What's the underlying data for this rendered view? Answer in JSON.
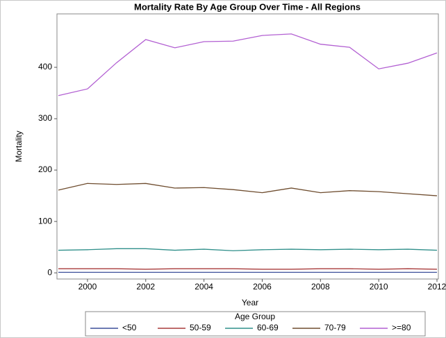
{
  "chart_data": {
    "type": "line",
    "title": "Mortality Rate By Age Group Over Time - All Regions",
    "x_label": "Year",
    "y_label": "Mortality",
    "x": [
      1999,
      2000,
      2001,
      2002,
      2003,
      2004,
      2005,
      2006,
      2007,
      2008,
      2009,
      2010,
      2011,
      2012
    ],
    "xlim": [
      1999,
      2012
    ],
    "xticks": [
      2000,
      2002,
      2004,
      2006,
      2008,
      2010,
      2012
    ],
    "ylim": [
      -12,
      504
    ],
    "yticks": [
      0,
      100,
      200,
      300,
      400
    ],
    "legend_title": "Age Group",
    "legend": "bottom",
    "series": [
      {
        "name": "<50",
        "color": "#3b4f9a",
        "values": [
          1,
          1,
          1,
          1,
          1,
          1,
          1,
          1,
          1,
          1,
          1,
          1,
          1,
          1
        ]
      },
      {
        "name": "50-59",
        "color": "#a83a3a",
        "values": [
          8,
          8,
          8,
          7,
          8,
          8,
          8,
          7,
          7,
          8,
          8,
          7,
          8,
          7
        ]
      },
      {
        "name": "60-69",
        "color": "#2f8f8a",
        "values": [
          44,
          45,
          47,
          47,
          44,
          46,
          43,
          45,
          46,
          45,
          46,
          45,
          46,
          44
        ]
      },
      {
        "name": "70-79",
        "color": "#6e4c2e",
        "values": [
          161,
          174,
          172,
          174,
          165,
          166,
          162,
          156,
          165,
          156,
          160,
          158,
          154,
          150
        ]
      },
      {
        "name": ">=80",
        "color": "#b25fd2",
        "values": [
          345,
          358,
          409,
          454,
          438,
          450,
          451,
          462,
          465,
          445,
          439,
          397,
          408,
          428
        ]
      }
    ]
  }
}
